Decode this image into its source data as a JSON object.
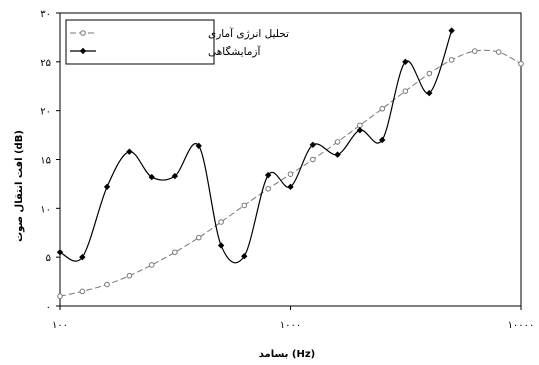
{
  "chart_data": {
    "type": "line",
    "xlabel": "بسامد (Hz)",
    "ylabel": "افت انتقال صوت (dB)",
    "xscale": "log",
    "xlim": [
      100,
      10000
    ],
    "ylim": [
      0,
      30
    ],
    "x_ticks": [
      100,
      1000,
      10000
    ],
    "x_tick_labels": [
      "۱۰۰",
      "۱۰۰۰",
      "۱۰۰۰۰"
    ],
    "y_ticks": [
      0,
      5,
      10,
      15,
      20,
      25,
      30
    ],
    "y_tick_labels": [
      "۰",
      "۵",
      "۱۰",
      "۱۵",
      "۲۰",
      "۲۵",
      "۳۰"
    ],
    "grid": false,
    "legend_position": "top-left",
    "series": [
      {
        "name": "تحلیل انرژی آماری",
        "color": "#777777",
        "marker": "open-circle",
        "line": "dashed",
        "x": [
          100,
          125,
          160,
          200,
          250,
          315,
          400,
          500,
          630,
          800,
          1000,
          1250,
          1600,
          2000,
          2500,
          3150,
          4000,
          5000,
          6300,
          8000,
          10000
        ],
        "y": [
          1.0,
          1.5,
          2.2,
          3.1,
          4.2,
          5.5,
          7.0,
          8.6,
          10.3,
          12.0,
          13.5,
          15.0,
          16.8,
          18.5,
          20.2,
          22.0,
          23.8,
          25.2,
          26.1,
          26.0,
          24.8
        ]
      },
      {
        "name": "آزمایشگاهی",
        "color": "#000000",
        "marker": "filled-diamond",
        "line": "solid",
        "x": [
          100,
          125,
          160,
          200,
          250,
          315,
          400,
          500,
          630,
          800,
          1000,
          1250,
          1600,
          2000,
          2500,
          3150,
          4000,
          5000
        ],
        "y": [
          5.5,
          5.0,
          12.2,
          15.8,
          13.2,
          13.3,
          16.4,
          6.2,
          5.1,
          13.4,
          12.2,
          16.5,
          15.5,
          18.0,
          17.0,
          25.0,
          21.8,
          28.2
        ]
      }
    ]
  }
}
